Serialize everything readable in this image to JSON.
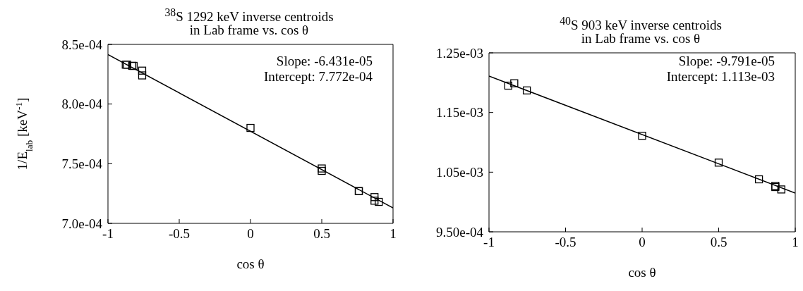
{
  "chart_data": [
    {
      "type": "scatter",
      "title": "$^{38}$S 1292 keV inverse centroids\nin Lab frame vs. cos θ",
      "xlabel": "cos θ",
      "ylabel": "1/E$_{lab}$ [keV$^{-1}$]",
      "xlim": [
        -1,
        1
      ],
      "xticks": [
        -1,
        -0.5,
        0,
        0.5,
        1
      ],
      "ylim": [
        0.0007,
        0.00085
      ],
      "yticks": [
        {
          "value": 0.0007,
          "label": "7.0e-04"
        },
        {
          "value": 0.00075,
          "label": "7.5e-04"
        },
        {
          "value": 0.0008,
          "label": "8.0e-04"
        },
        {
          "value": 0.00085,
          "label": "8.5e-04"
        }
      ],
      "grid": false,
      "legend": false,
      "marker": "square",
      "annotations": [
        "Slope: -6.431e-05",
        "Intercept: 7.772e-04"
      ],
      "series": [
        {
          "type": "scatter",
          "color": "#000000",
          "x": [
            -0.875,
            -0.865,
            -0.83,
            -0.82,
            -0.76,
            -0.76,
            0,
            0.5,
            0.5,
            0.76,
            0.76,
            0.87,
            0.87,
            0.9
          ],
          "values": [
            0.000833,
            0.000833,
            0.000832,
            0.000832,
            0.000828,
            0.000824,
            0.00078,
            0.000746,
            0.000744,
            0.000727,
            0.000727,
            0.000722,
            0.000719,
            0.000718
          ]
        },
        {
          "type": "line",
          "color": "#000000",
          "x": [
            -1,
            1
          ],
          "values": [
            0.0008415,
            0.0007129
          ],
          "line_style": "solid",
          "marker": "none"
        }
      ]
    },
    {
      "type": "scatter",
      "title": "$^{40}$S 903 keV inverse centroids\nin Lab frame vs. cos θ",
      "xlabel": "cos θ",
      "xlim": [
        -1,
        1
      ],
      "xticks": [
        -1,
        -0.5,
        0,
        0.5,
        1
      ],
      "ylim": [
        0.00095,
        0.00125
      ],
      "yticks": [
        {
          "value": 0.00095,
          "label": "9.50e-04"
        },
        {
          "value": 0.00105,
          "label": "1.05e-03"
        },
        {
          "value": 0.00115,
          "label": "1.15e-03"
        },
        {
          "value": 0.00125,
          "label": "1.25e-03"
        }
      ],
      "grid": false,
      "legend": false,
      "marker": "square",
      "annotations": [
        "Slope: -9.791e-05",
        "Intercept: 1.113e-03"
      ],
      "series": [
        {
          "type": "scatter",
          "color": "#000000",
          "x": [
            -0.874,
            -0.835,
            -0.753,
            0,
            0.5,
            0.763,
            0.87,
            0.87,
            0.909
          ],
          "values": [
            0.001195,
            0.001199,
            0.001187,
            0.001111,
            0.001066,
            0.001038,
            0.001027,
            0.001025,
            0.001021
          ]
        },
        {
          "type": "line",
          "color": "#000000",
          "x": [
            -1,
            1
          ],
          "values": [
            0.001211,
            0.001015
          ],
          "line_style": "solid",
          "marker": "none"
        }
      ]
    }
  ]
}
